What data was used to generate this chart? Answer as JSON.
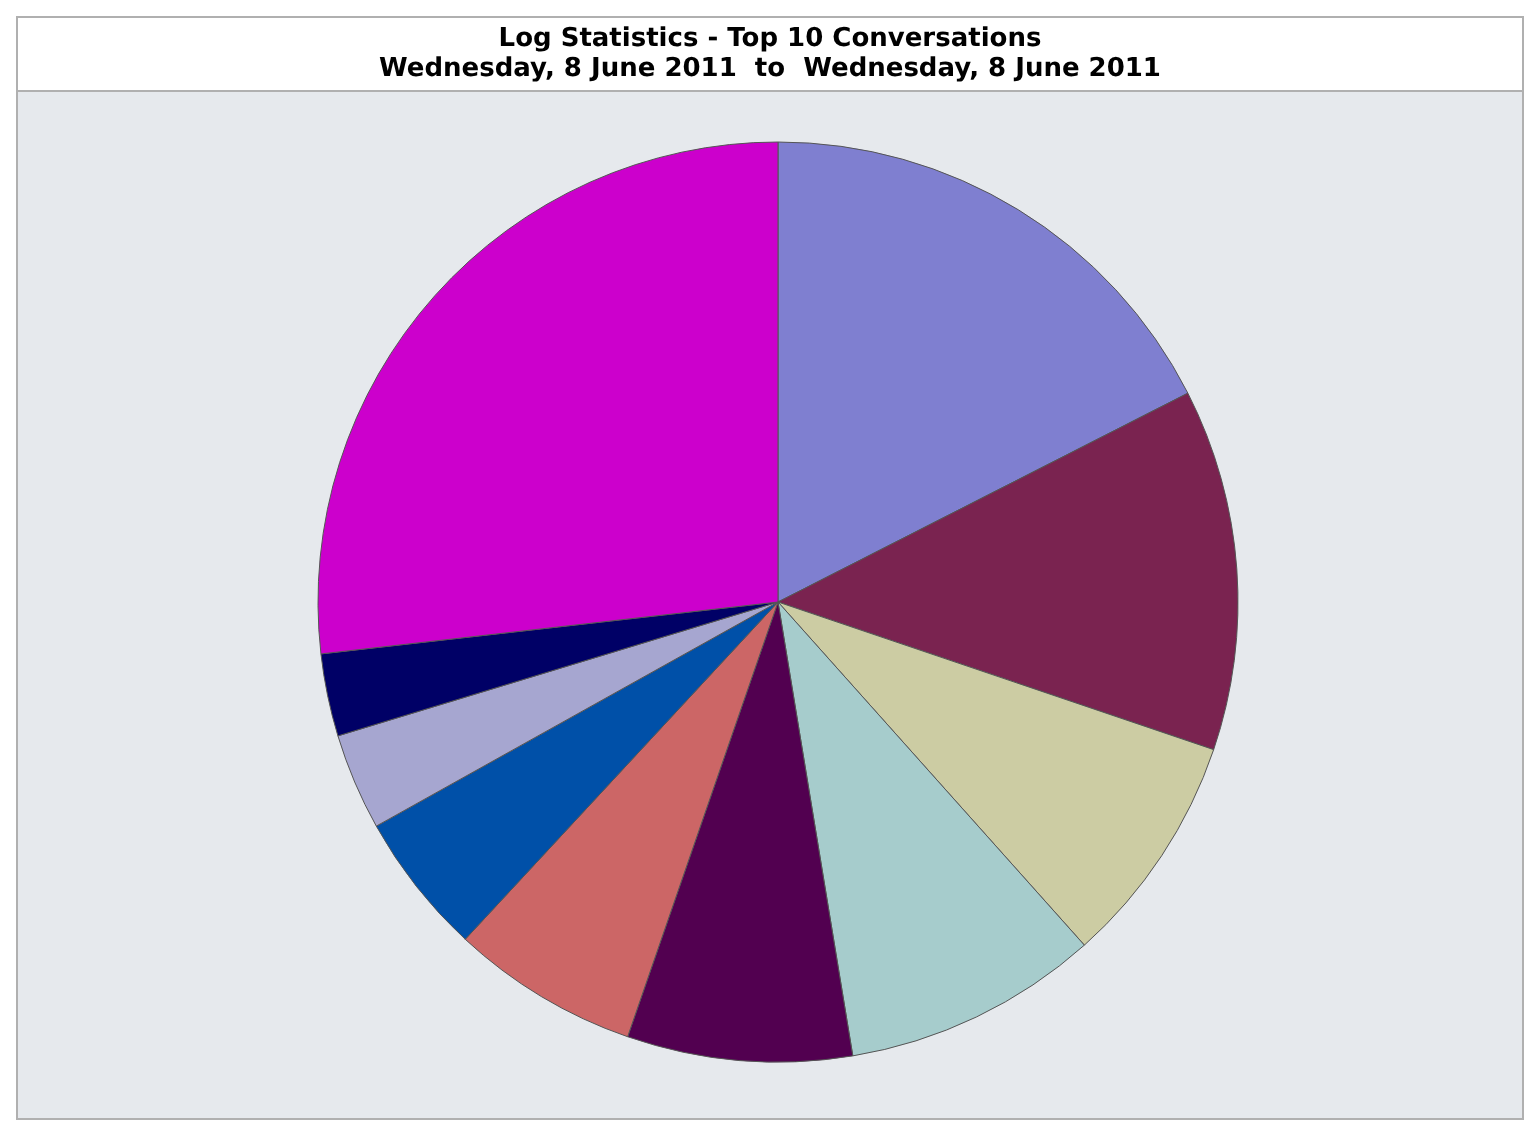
{
  "chart_data": {
    "type": "pie",
    "title": "Log Statistics - Top 10 Conversations",
    "subtitle": "Wednesday, 8 June 2011  to  Wednesday, 8 June 2011",
    "categories": [
      null,
      null,
      null,
      null,
      null,
      null,
      null,
      null,
      null,
      null
    ],
    "values": [
      17.5,
      12.7,
      8.2,
      9.0,
      7.9,
      6.6,
      5.0,
      3.4,
      2.9,
      26.8
    ],
    "colors": [
      "#7f7fd0",
      "#7a2350",
      "#cccca3",
      "#a6cccc",
      "#520050",
      "#cc6666",
      "#0050a8",
      "#a6a6d0",
      "#000066",
      "#cc00cc"
    ]
  }
}
